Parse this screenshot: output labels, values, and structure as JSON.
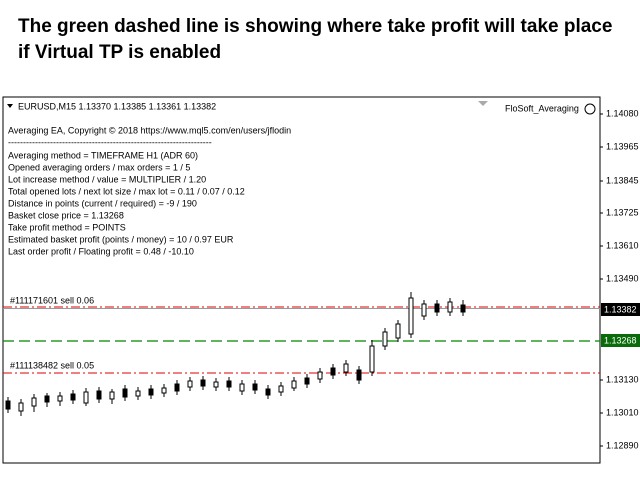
{
  "caption": "The green dashed line is showing where take profit will take place if Virtual TP is enabled",
  "chart": {
    "symbol_header": "EURUSD,M15  1.13370 1.13385 1.13361 1.13382",
    "ea_name": "FloSoft_Averaging",
    "info_lines": [
      "Averaging EA, Copyright © 2018 https://www.mql5.com/en/users/jflodin",
      "--------------------------------------------------------------------",
      "Averaging method = TIMEFRAME H1 (ADR 60)",
      "Opened averaging orders / max orders  =  1 / 5",
      "Lot increase method / value  =  MULTIPLIER / 1.20",
      "Total opened lots / next lot size / max lot  =  0.11 / 0.07 / 0.12",
      "Distance in points (current / required) = -9 / 190",
      "Basket close price  =  1.13268",
      "Take profit method =  POINTS",
      "Estimated basket profit (points / money) =  10 / 0.97 EUR",
      "Last order profit / Floating profit = 0.48 / -10.10"
    ],
    "orders": [
      "#111171601 sell 0.06",
      "#111138482 sell 0.05"
    ],
    "price_axis": [
      "1.14080",
      "1.13965",
      "1.13845",
      "1.13725",
      "1.13610",
      "1.13490",
      "1.13130",
      "1.13010",
      "1.12890"
    ],
    "current_price": "1.13382",
    "take_profit_price": "1.13268"
  }
}
